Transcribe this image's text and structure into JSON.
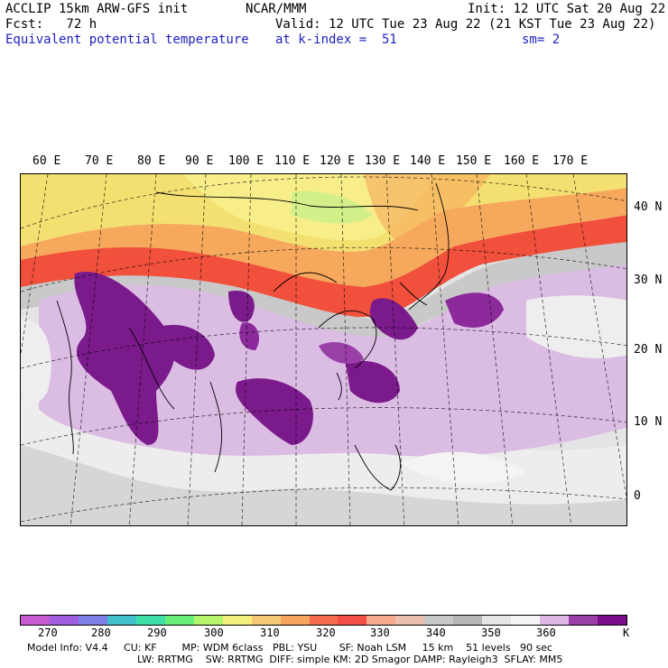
{
  "header": {
    "line1_left": "ACCLIP 15km ARW-GFS init",
    "line1_center": "NCAR/MMM",
    "line1_right": "Init: 12 UTC Sat 20 Aug 22",
    "line2_left": "Fcst:   72 h",
    "line2_right": "Valid: 12 UTC Tue 23 Aug 22 (21 KST Tue 23 Aug 22)",
    "line3_left": "Equivalent potential temperature",
    "line3_center": "at k-index =  51",
    "line3_right": "sm= 2"
  },
  "map": {
    "longitude_labels": [
      "60 E",
      "70 E",
      "80 E",
      "90 E",
      "100 E",
      "110 E",
      "120 E",
      "130 E",
      "140 E",
      "150 E",
      "160 E",
      "170 E"
    ],
    "latitude_labels": [
      "40 N",
      "30 N",
      "20 N",
      "10 N",
      "0"
    ],
    "colors": {
      "cold_north": "#f2e066",
      "warm_band": "#f25a3c",
      "moist_high": "#7d1a8c",
      "moist_mid": "#d7b2e0",
      "ocean_background": "#e6e6e6",
      "grey_land": "#bfbfbf"
    }
  },
  "colorbar": {
    "labels": [
      "270",
      "280",
      "290",
      "300",
      "310",
      "320",
      "330",
      "340",
      "350",
      "360",
      "K"
    ],
    "colors": [
      "#c65bd2",
      "#9f5fe0",
      "#7f7fe8",
      "#3fc1c9",
      "#3fe0a8",
      "#69f07a",
      "#b5f56b",
      "#f4f07b",
      "#f6c873",
      "#f7a45e",
      "#f56b4e",
      "#f25046",
      "#f6a98f",
      "#ecc0b0",
      "#c9c9c9",
      "#b7b7b7",
      "#e5e5e5",
      "#f4f4f4",
      "#dcb8e2",
      "#9b3fa8",
      "#7a0c8a"
    ]
  },
  "footer": {
    "line1": "Model Info: V4.4     CU: KF        MP: WDM 6class   PBL: YSU       SF: Noah LSM     15 km    51 levels   90 sec",
    "line2": "LW: RRTMG    SW: RRTMG  DIFF: simple KM: 2D Smagor DAMP: Rayleigh3  SFLAY: MM5"
  }
}
